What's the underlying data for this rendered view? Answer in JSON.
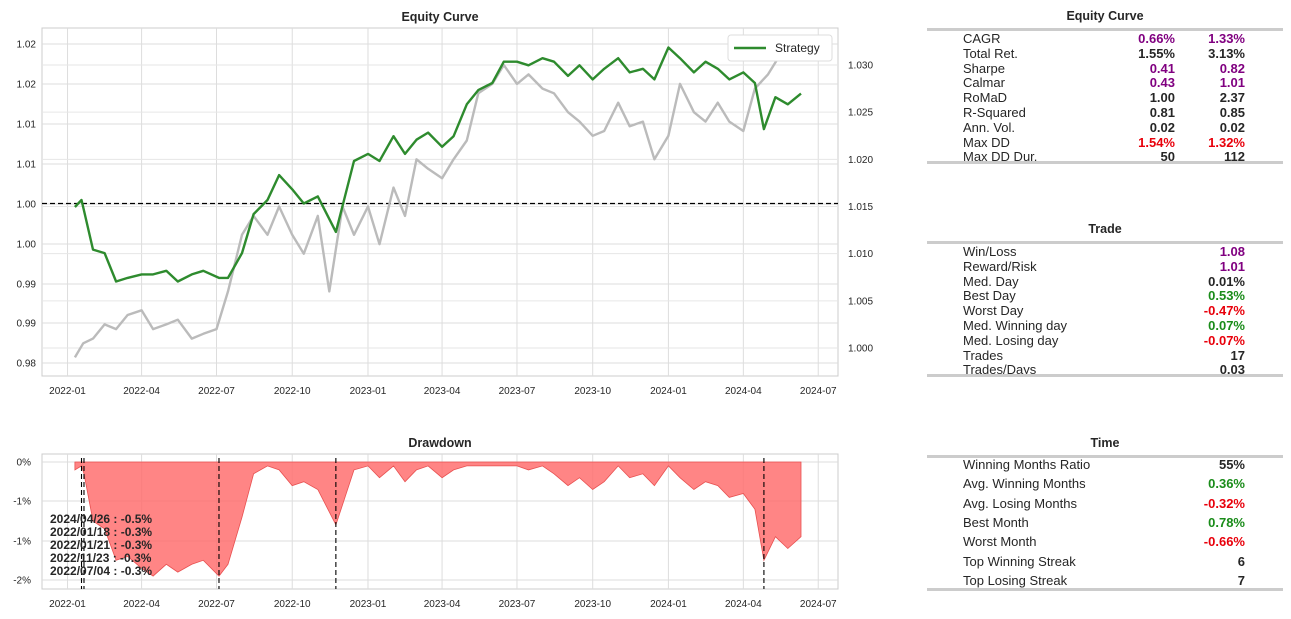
{
  "chart_data": [
    {
      "type": "line",
      "title": "Equity Curve",
      "xlabel": "",
      "ylabel": "",
      "x_ticks": [
        "2022-01",
        "2022-04",
        "2022-07",
        "2022-10",
        "2023-01",
        "2023-04",
        "2023-07",
        "2023-10",
        "2024-01",
        "2024-04",
        "2024-07"
      ],
      "y_ticks_left": [
        "1.02",
        "1.02",
        "1.01",
        "1.01",
        "1.00",
        "1.00",
        "0.99",
        "0.99",
        "0.98"
      ],
      "y_ticks_right": [
        "1.030",
        "1.025",
        "1.020",
        "1.015",
        "1.010",
        "1.005",
        "1.000"
      ],
      "reference_line": 1.0,
      "legend": {
        "entries": [
          "Strategy"
        ],
        "placement": "top-right"
      },
      "series": [
        {
          "name": "Strategy",
          "axis": "left",
          "color": "#2e8b2e",
          "x": [
            "2022-01-10",
            "2022-01-18",
            "2022-01-21",
            "2022-02-01",
            "2022-02-15",
            "2022-03-01",
            "2022-03-15",
            "2022-04-01",
            "2022-04-15",
            "2022-05-01",
            "2022-05-15",
            "2022-06-01",
            "2022-06-15",
            "2022-07-04",
            "2022-07-15",
            "2022-08-01",
            "2022-08-15",
            "2022-09-01",
            "2022-09-15",
            "2022-10-01",
            "2022-10-15",
            "2022-11-01",
            "2022-11-23",
            "2022-12-15",
            "2023-01-01",
            "2023-01-15",
            "2023-02-01",
            "2023-02-15",
            "2023-03-01",
            "2023-03-15",
            "2023-04-01",
            "2023-04-15",
            "2023-05-01",
            "2023-05-15",
            "2023-06-01",
            "2023-06-15",
            "2023-07-01",
            "2023-07-15",
            "2023-08-01",
            "2023-08-15",
            "2023-09-01",
            "2023-09-15",
            "2023-10-01",
            "2023-10-15",
            "2023-11-01",
            "2023-11-15",
            "2023-12-01",
            "2023-12-15",
            "2024-01-01",
            "2024-01-15",
            "2024-02-01",
            "2024-02-15",
            "2024-03-01",
            "2024-03-15",
            "2024-04-01",
            "2024-04-15",
            "2024-04-26",
            "2024-05-10",
            "2024-05-25",
            "2024-06-10"
          ],
          "y": [
            0.9995,
            1.0005,
            0.999,
            0.9935,
            0.993,
            0.989,
            0.9895,
            0.99,
            0.99,
            0.9905,
            0.989,
            0.99,
            0.9905,
            0.9895,
            0.9895,
            0.993,
            0.9985,
            1.0005,
            1.004,
            1.002,
            1.0,
            1.001,
            0.996,
            1.006,
            1.007,
            1.006,
            1.0095,
            1.007,
            1.009,
            1.01,
            1.008,
            1.0095,
            1.014,
            1.016,
            1.017,
            1.02,
            1.02,
            1.0195,
            1.0205,
            1.02,
            1.018,
            1.0195,
            1.0175,
            1.019,
            1.0205,
            1.0185,
            1.019,
            1.0175,
            1.022,
            1.0205,
            1.0185,
            1.02,
            1.019,
            1.0175,
            1.0185,
            1.017,
            1.0105,
            1.015,
            1.014,
            1.0155
          ]
        },
        {
          "name": "",
          "axis": "right",
          "color": "#bbbbbb",
          "x": [
            "2022-01-10",
            "2022-01-20",
            "2022-02-01",
            "2022-02-15",
            "2022-03-01",
            "2022-03-15",
            "2022-04-01",
            "2022-04-15",
            "2022-05-01",
            "2022-05-15",
            "2022-06-01",
            "2022-06-15",
            "2022-07-01",
            "2022-07-15",
            "2022-08-01",
            "2022-08-15",
            "2022-09-01",
            "2022-09-15",
            "2022-10-01",
            "2022-10-15",
            "2022-11-01",
            "2022-11-15",
            "2022-12-01",
            "2022-12-15",
            "2023-01-01",
            "2023-01-15",
            "2023-02-01",
            "2023-02-15",
            "2023-03-01",
            "2023-03-15",
            "2023-04-01",
            "2023-04-15",
            "2023-05-01",
            "2023-05-15",
            "2023-06-01",
            "2023-06-15",
            "2023-07-01",
            "2023-07-15",
            "2023-08-01",
            "2023-08-15",
            "2023-09-01",
            "2023-09-15",
            "2023-10-01",
            "2023-10-15",
            "2023-11-01",
            "2023-11-15",
            "2023-12-01",
            "2023-12-15",
            "2024-01-01",
            "2024-01-15",
            "2024-02-01",
            "2024-02-15",
            "2024-03-01",
            "2024-03-15",
            "2024-04-01",
            "2024-04-15",
            "2024-05-01",
            "2024-05-15",
            "2024-06-01",
            "2024-06-15"
          ],
          "y": [
            0.999,
            1.0005,
            1.001,
            1.0025,
            1.002,
            1.0035,
            1.004,
            1.002,
            1.0025,
            1.003,
            1.001,
            1.0015,
            1.002,
            1.006,
            1.012,
            1.014,
            1.012,
            1.015,
            1.012,
            1.01,
            1.014,
            1.006,
            1.015,
            1.012,
            1.015,
            1.011,
            1.017,
            1.014,
            1.02,
            1.019,
            1.018,
            1.02,
            1.022,
            1.027,
            1.028,
            1.03,
            1.028,
            1.029,
            1.0275,
            1.027,
            1.025,
            1.024,
            1.0225,
            1.023,
            1.026,
            1.0235,
            1.024,
            1.02,
            1.0225,
            1.028,
            1.025,
            1.024,
            1.026,
            1.024,
            1.023,
            1.0275,
            1.029,
            1.031,
            1.0315,
            1.032
          ]
        }
      ]
    },
    {
      "type": "area",
      "title": "Drawdown",
      "xlabel": "",
      "ylabel": "",
      "x_ticks": [
        "2022-01",
        "2022-04",
        "2022-07",
        "2022-10",
        "2023-01",
        "2023-04",
        "2023-07",
        "2023-10",
        "2024-01",
        "2024-04",
        "2024-07"
      ],
      "y_ticks": [
        "0%",
        "-1%",
        "-1%",
        "-2%"
      ],
      "color": "#ff6060",
      "series": [
        {
          "name": "Drawdown",
          "x": [
            "2022-01-10",
            "2022-01-18",
            "2022-01-21",
            "2022-02-01",
            "2022-02-15",
            "2022-03-01",
            "2022-03-15",
            "2022-04-01",
            "2022-04-15",
            "2022-05-01",
            "2022-05-15",
            "2022-06-01",
            "2022-06-15",
            "2022-07-04",
            "2022-07-15",
            "2022-08-01",
            "2022-08-15",
            "2022-09-01",
            "2022-09-15",
            "2022-10-01",
            "2022-10-15",
            "2022-11-01",
            "2022-11-23",
            "2022-12-15",
            "2023-01-01",
            "2023-01-15",
            "2023-02-01",
            "2023-02-15",
            "2023-03-01",
            "2023-03-15",
            "2023-04-01",
            "2023-04-15",
            "2023-05-01",
            "2023-05-15",
            "2023-06-01",
            "2023-06-15",
            "2023-07-01",
            "2023-07-15",
            "2023-08-01",
            "2023-08-15",
            "2023-09-01",
            "2023-09-15",
            "2023-10-01",
            "2023-10-15",
            "2023-11-01",
            "2023-11-15",
            "2023-12-01",
            "2023-12-15",
            "2024-01-01",
            "2024-01-15",
            "2024-02-01",
            "2024-02-15",
            "2024-03-01",
            "2024-03-15",
            "2024-04-01",
            "2024-04-15",
            "2024-04-26",
            "2024-05-10",
            "2024-05-25",
            "2024-06-10"
          ],
          "y": [
            -0.1,
            -0.05,
            -0.15,
            -0.75,
            -0.85,
            -1.25,
            -1.2,
            -1.35,
            -1.45,
            -1.3,
            -1.4,
            -1.3,
            -1.25,
            -1.45,
            -1.3,
            -0.7,
            -0.15,
            -0.05,
            -0.1,
            -0.3,
            -0.25,
            -0.35,
            -0.8,
            -0.1,
            -0.05,
            -0.2,
            -0.05,
            -0.25,
            -0.1,
            -0.05,
            -0.2,
            -0.1,
            -0.05,
            -0.05,
            -0.05,
            -0.05,
            -0.05,
            -0.1,
            -0.05,
            -0.15,
            -0.3,
            -0.2,
            -0.35,
            -0.25,
            -0.05,
            -0.2,
            -0.15,
            -0.3,
            -0.05,
            -0.2,
            -0.35,
            -0.25,
            -0.3,
            -0.45,
            -0.4,
            -0.6,
            -1.25,
            -0.95,
            -1.1,
            -0.95
          ]
        }
      ],
      "markers": [
        "2022-01-18",
        "2022-01-21",
        "2022-07-04",
        "2022-11-23",
        "2024-04-26"
      ],
      "annotations": [
        "2024/04/26 : -0.5%",
        "2022/01/18 : -0.3%",
        "2022/01/21 : -0.3%",
        "2022/11/23 : -0.3%",
        "2022/07/04 : -0.3%"
      ]
    }
  ],
  "tables": {
    "equity": {
      "title": "Equity Curve",
      "rows": [
        {
          "label": "CAGR",
          "v1": "0.66%",
          "v2": "1.33%",
          "c1": "#800080",
          "c2": "#800080"
        },
        {
          "label": "Total Ret.",
          "v1": "1.55%",
          "v2": "3.13%",
          "c1": "#262626",
          "c2": "#262626"
        },
        {
          "label": "Sharpe",
          "v1": "0.41",
          "v2": "0.82",
          "c1": "#800080",
          "c2": "#800080"
        },
        {
          "label": "Calmar",
          "v1": "0.43",
          "v2": "1.01",
          "c1": "#800080",
          "c2": "#800080"
        },
        {
          "label": "RoMaD",
          "v1": "1.00",
          "v2": "2.37",
          "c1": "#262626",
          "c2": "#262626"
        },
        {
          "label": "R-Squared",
          "v1": "0.81",
          "v2": "0.85",
          "c1": "#262626",
          "c2": "#262626"
        },
        {
          "label": "Ann. Vol.",
          "v1": "0.02",
          "v2": "0.02",
          "c1": "#262626",
          "c2": "#262626"
        },
        {
          "label": "Max DD",
          "v1": "1.54%",
          "v2": "1.32%",
          "c1": "#e8000b",
          "c2": "#e8000b"
        },
        {
          "label": "Max DD Dur.",
          "v1": "50",
          "v2": "112",
          "c1": "#262626",
          "c2": "#262626"
        }
      ]
    },
    "trade": {
      "title": "Trade",
      "rows": [
        {
          "label": "Win/Loss",
          "v2": "1.08",
          "c2": "#800080"
        },
        {
          "label": "Reward/Risk",
          "v2": "1.01",
          "c2": "#800080"
        },
        {
          "label": "Med. Day",
          "v2": "0.01%",
          "c2": "#262626"
        },
        {
          "label": "Best Day",
          "v2": "0.53%",
          "c2": "#1a8c1a"
        },
        {
          "label": "Worst Day",
          "v2": "-0.47%",
          "c2": "#e8000b"
        },
        {
          "label": "Med. Winning day",
          "v2": "0.07%",
          "c2": "#1a8c1a"
        },
        {
          "label": "Med. Losing day",
          "v2": "-0.07%",
          "c2": "#e8000b"
        },
        {
          "label": "Trades",
          "v2": "17",
          "c2": "#262626"
        },
        {
          "label": "Trades/Days",
          "v2": "0.03",
          "c2": "#262626"
        }
      ]
    },
    "time": {
      "title": "Time",
      "rows": [
        {
          "label": "Winning Months Ratio",
          "v2": "55%",
          "c2": "#262626"
        },
        {
          "label": "Avg. Winning Months",
          "v2": "0.36%",
          "c2": "#1a8c1a"
        },
        {
          "label": "Avg. Losing Months",
          "v2": "-0.32%",
          "c2": "#e8000b"
        },
        {
          "label": "Best Month",
          "v2": "0.78%",
          "c2": "#1a8c1a"
        },
        {
          "label": "Worst Month",
          "v2": "-0.66%",
          "c2": "#e8000b"
        },
        {
          "label": "Top Winning Streak",
          "v2": "6",
          "c2": "#262626"
        },
        {
          "label": "Top Losing Streak",
          "v2": "7",
          "c2": "#262626"
        }
      ]
    }
  }
}
